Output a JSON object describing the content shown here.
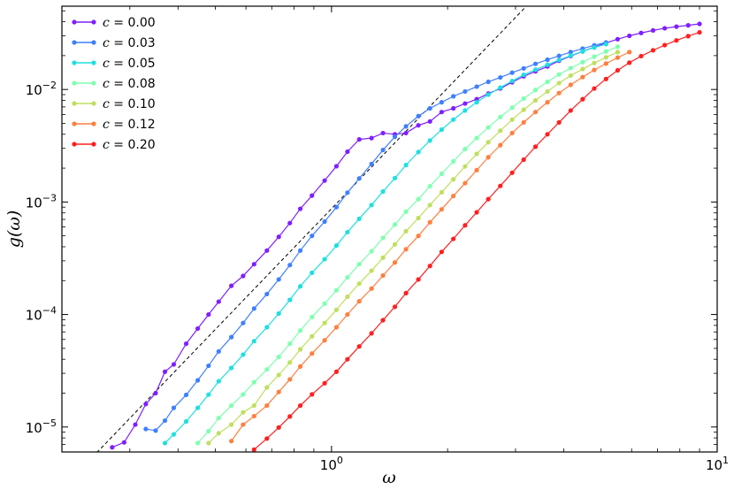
{
  "chart_data": {
    "type": "line",
    "xscale": "log",
    "yscale": "log",
    "xlabel": "ω",
    "ylabel": "g(ω)",
    "xlim": [
      0.2,
      10
    ],
    "ylim": [
      6e-06,
      0.055
    ],
    "legend_position": "top-left",
    "grid": false,
    "x_ticks": [
      {
        "value": 1,
        "base": "10",
        "exp": "0"
      },
      {
        "value": 10,
        "base": "10",
        "exp": "1"
      }
    ],
    "y_ticks": [
      {
        "value": 1e-05,
        "base": "10",
        "exp": "−5"
      },
      {
        "value": 0.0001,
        "base": "10",
        "exp": "−4"
      },
      {
        "value": 0.001,
        "base": "10",
        "exp": "−3"
      },
      {
        "value": 0.01,
        "base": "10",
        "exp": "−2"
      }
    ],
    "reference_line": {
      "style": "dashed",
      "color": "#000000",
      "x": [
        0.24,
        3.2
      ],
      "y": [
        5.4e-06,
        0.055
      ]
    },
    "series": [
      {
        "name": "c = 0.00",
        "c_label": "c",
        "value_label": "0.00",
        "color": "#7f1fff",
        "x": [
          0.27,
          0.29,
          0.31,
          0.33,
          0.35,
          0.37,
          0.39,
          0.42,
          0.45,
          0.48,
          0.51,
          0.55,
          0.59,
          0.63,
          0.68,
          0.73,
          0.78,
          0.83,
          0.89,
          0.96,
          1.03,
          1.1,
          1.18,
          1.27,
          1.36,
          1.46,
          1.56,
          1.68,
          1.8,
          1.93,
          2.07,
          2.22,
          2.38,
          2.55,
          2.74,
          2.94,
          3.15,
          3.38,
          3.63,
          3.89,
          4.17,
          4.48,
          4.8,
          5.15,
          5.52,
          5.92,
          6.35,
          6.82,
          7.31,
          7.84,
          8.41,
          9.0
        ],
        "y": [
          6.6e-06,
          7.3e-06,
          1.05e-05,
          1.6e-05,
          2e-05,
          3.1e-05,
          3.6e-05,
          5.5e-05,
          7.5e-05,
          0.0001,
          0.00013,
          0.00018,
          0.00022,
          0.00028,
          0.00037,
          0.00049,
          0.00065,
          0.00087,
          0.00114,
          0.00155,
          0.00208,
          0.0028,
          0.0036,
          0.0037,
          0.0041,
          0.004,
          0.0041,
          0.0048,
          0.0052,
          0.0063,
          0.0068,
          0.0075,
          0.0082,
          0.0092,
          0.0102,
          0.0116,
          0.0131,
          0.0145,
          0.016,
          0.018,
          0.0198,
          0.0218,
          0.0238,
          0.026,
          0.028,
          0.03,
          0.0318,
          0.0335,
          0.035,
          0.0362,
          0.0372,
          0.0383
        ]
      },
      {
        "name": "c = 0.03",
        "c_label": "c",
        "value_label": "0.03",
        "color": "#3f7fff",
        "x": [
          0.33,
          0.35,
          0.37,
          0.39,
          0.42,
          0.45,
          0.48,
          0.51,
          0.55,
          0.59,
          0.63,
          0.68,
          0.73,
          0.78,
          0.83,
          0.89,
          0.96,
          1.03,
          1.1,
          1.18,
          1.27,
          1.36,
          1.46,
          1.56,
          1.68,
          1.8,
          1.93,
          2.07,
          2.22,
          2.38,
          2.55,
          2.74,
          2.94,
          3.15,
          3.38,
          3.63,
          3.89,
          4.17,
          4.48,
          4.8,
          5.15
        ],
        "y": [
          9.6e-06,
          9.3e-06,
          1.14e-05,
          1.48e-05,
          1.93e-05,
          2.6e-05,
          3.5e-05,
          4.7e-05,
          6.3e-05,
          8.4e-05,
          0.000113,
          0.000152,
          0.000205,
          0.000275,
          0.00037,
          0.0005,
          0.00067,
          0.0009,
          0.00121,
          0.00162,
          0.00218,
          0.0029,
          0.0038,
          0.0047,
          0.0058,
          0.0068,
          0.0077,
          0.0087,
          0.0096,
          0.0106,
          0.0117,
          0.0128,
          0.0141,
          0.0154,
          0.0169,
          0.0184,
          0.0199,
          0.0215,
          0.0231,
          0.0247,
          0.0262
        ]
      },
      {
        "name": "c = 0.05",
        "c_label": "c",
        "value_label": "0.05",
        "color": "#1fdfdf",
        "x": [
          0.37,
          0.39,
          0.42,
          0.45,
          0.48,
          0.51,
          0.55,
          0.59,
          0.63,
          0.68,
          0.73,
          0.78,
          0.83,
          0.89,
          0.96,
          1.03,
          1.1,
          1.18,
          1.27,
          1.36,
          1.46,
          1.56,
          1.68,
          1.8,
          1.93,
          2.07,
          2.22,
          2.38,
          2.55,
          2.74,
          2.94,
          3.15,
          3.38,
          3.63,
          3.89,
          4.17,
          4.48,
          4.8,
          5.15
        ],
        "y": [
          7.2e-06,
          8.6e-06,
          1.12e-05,
          1.48e-05,
          1.94e-05,
          2.55e-05,
          3.35e-05,
          4.4e-05,
          5.8e-05,
          7.7e-05,
          0.000102,
          0.000135,
          0.000178,
          0.000235,
          0.00031,
          0.00041,
          0.00054,
          0.00071,
          0.00094,
          0.00124,
          0.00163,
          0.00213,
          0.00278,
          0.00352,
          0.0044,
          0.0054,
          0.0065,
          0.0077,
          0.009,
          0.0104,
          0.0119,
          0.0135,
          0.015,
          0.0166,
          0.0183,
          0.02,
          0.0218,
          0.0236,
          0.0253
        ]
      },
      {
        "name": "c = 0.08",
        "c_label": "c",
        "value_label": "0.08",
        "color": "#7fffaf",
        "x": [
          0.45,
          0.48,
          0.51,
          0.55,
          0.59,
          0.63,
          0.68,
          0.73,
          0.78,
          0.83,
          0.89,
          0.96,
          1.03,
          1.1,
          1.18,
          1.27,
          1.36,
          1.46,
          1.56,
          1.68,
          1.8,
          1.93,
          2.07,
          2.22,
          2.38,
          2.55,
          2.74,
          2.94,
          3.15,
          3.38,
          3.63,
          3.89,
          4.17,
          4.48,
          4.8,
          5.15,
          5.52
        ],
        "y": [
          7.2e-06,
          9.2e-06,
          1.2e-05,
          1.55e-05,
          1.95e-05,
          2.5e-05,
          3.25e-05,
          4.2e-05,
          5.5e-05,
          7.2e-05,
          9.5e-05,
          0.000125,
          0.000164,
          0.000214,
          0.00028,
          0.000365,
          0.00048,
          0.00063,
          0.00082,
          0.00106,
          0.00138,
          0.00178,
          0.0023,
          0.00295,
          0.0037,
          0.0046,
          0.0057,
          0.0069,
          0.0083,
          0.0099,
          0.0117,
          0.0136,
          0.0155,
          0.0175,
          0.0196,
          0.0218,
          0.024
        ]
      },
      {
        "name": "c = 0.10",
        "c_label": "c",
        "value_label": "0.10",
        "color": "#bfdf5f",
        "x": [
          0.48,
          0.51,
          0.55,
          0.59,
          0.63,
          0.68,
          0.73,
          0.78,
          0.83,
          0.89,
          0.96,
          1.03,
          1.1,
          1.18,
          1.27,
          1.36,
          1.46,
          1.56,
          1.68,
          1.8,
          1.93,
          2.07,
          2.22,
          2.38,
          2.55,
          2.74,
          2.94,
          3.15,
          3.38,
          3.63,
          3.89,
          4.17,
          4.48,
          4.8,
          5.15,
          5.52
        ],
        "y": [
          7.2e-06,
          8.8e-06,
          1.05e-05,
          1.35e-05,
          1.55e-05,
          2.25e-05,
          2.9e-05,
          3.75e-05,
          4.9e-05,
          6.4e-05,
          8.4e-05,
          0.00011,
          0.000144,
          0.000188,
          0.000245,
          0.00032,
          0.00042,
          0.00055,
          0.00072,
          0.00094,
          0.00122,
          0.00159,
          0.00207,
          0.00268,
          0.0034,
          0.0043,
          0.0054,
          0.0066,
          0.008,
          0.0096,
          0.0114,
          0.0133,
          0.0152,
          0.0172,
          0.0193,
          0.0215
        ]
      },
      {
        "name": "c = 0.12",
        "c_label": "c",
        "value_label": "0.12",
        "color": "#ff7f3f",
        "x": [
          0.55,
          0.59,
          0.63,
          0.68,
          0.73,
          0.78,
          0.83,
          0.89,
          0.96,
          1.03,
          1.1,
          1.18,
          1.27,
          1.36,
          1.46,
          1.56,
          1.68,
          1.8,
          1.93,
          2.07,
          2.22,
          2.38,
          2.55,
          2.74,
          2.94,
          3.15,
          3.38,
          3.63,
          3.89,
          4.17,
          4.48,
          4.8,
          5.15,
          5.52,
          5.92
        ],
        "y": [
          7.5e-06,
          1.05e-05,
          1.25e-05,
          1.55e-05,
          2.05e-05,
          2.65e-05,
          3.45e-05,
          4.5e-05,
          5.9e-05,
          7.7e-05,
          0.0001,
          0.000131,
          0.00017,
          0.000222,
          0.00029,
          0.00038,
          0.0005,
          0.00066,
          0.00086,
          0.00113,
          0.00147,
          0.00192,
          0.0025,
          0.0032,
          0.0041,
          0.0051,
          0.0063,
          0.0077,
          0.0093,
          0.011,
          0.0129,
          0.0149,
          0.017,
          0.0192,
          0.0215
        ]
      },
      {
        "name": "c = 0.20",
        "c_label": "c",
        "value_label": "0.20",
        "color": "#ff1f1f",
        "x": [
          0.63,
          0.68,
          0.73,
          0.78,
          0.83,
          0.89,
          0.96,
          1.03,
          1.1,
          1.18,
          1.27,
          1.36,
          1.46,
          1.56,
          1.68,
          1.8,
          1.93,
          2.07,
          2.22,
          2.38,
          2.55,
          2.74,
          2.94,
          3.15,
          3.38,
          3.63,
          3.89,
          4.17,
          4.48,
          4.8,
          5.15,
          5.52,
          5.92,
          6.35,
          6.82,
          7.31,
          7.84,
          8.41,
          9.0
        ],
        "y": [
          6.3e-06,
          7.9e-06,
          9.9e-06,
          1.24e-05,
          1.55e-05,
          1.95e-05,
          2.45e-05,
          3.1e-05,
          4e-05,
          5.2e-05,
          6.8e-05,
          8.9e-05,
          0.000117,
          0.000155,
          0.000205,
          0.00027,
          0.00036,
          0.00047,
          0.00062,
          0.00081,
          0.00106,
          0.00139,
          0.00182,
          0.00238,
          0.0031,
          0.004,
          0.0051,
          0.0065,
          0.0082,
          0.0102,
          0.0124,
          0.0148,
          0.0173,
          0.0198,
          0.0223,
          0.0248,
          0.0273,
          0.0298,
          0.0322
        ]
      }
    ]
  }
}
